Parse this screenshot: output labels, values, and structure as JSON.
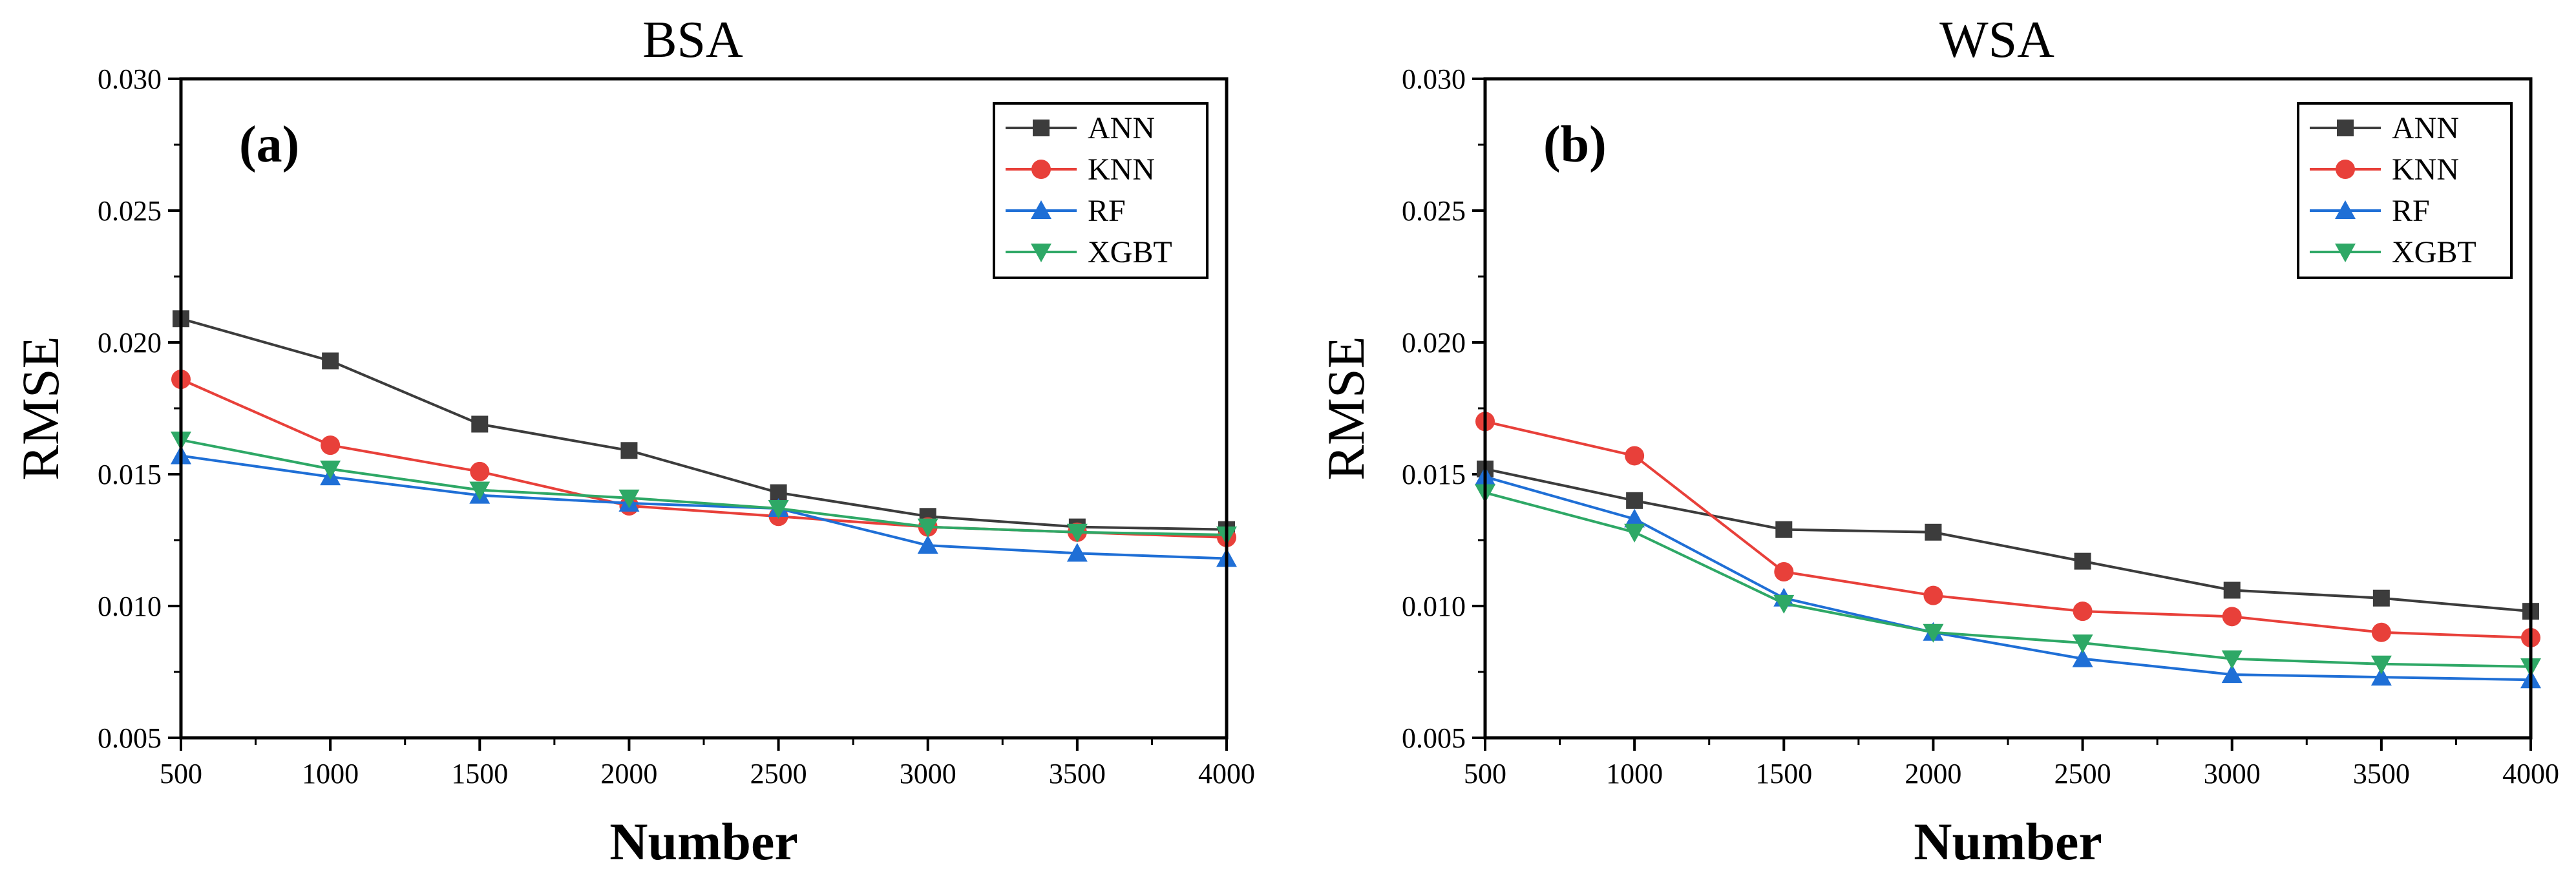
{
  "chart_data": [
    {
      "type": "line",
      "title": "BSA",
      "panel_label": "(a)",
      "xlabel": "Number",
      "ylabel": "RMSE",
      "x": [
        500,
        1000,
        1500,
        2000,
        2500,
        3000,
        3500,
        4000
      ],
      "x_ticks": [
        "500",
        "1000",
        "1500",
        "2000",
        "2500",
        "3000",
        "3500",
        "4000"
      ],
      "xlim": [
        500,
        4000
      ],
      "y_ticks": [
        "0.005",
        "0.010",
        "0.015",
        "0.020",
        "0.025",
        "0.030"
      ],
      "ylim": [
        0.005,
        0.03
      ],
      "legend_position": "top-right",
      "series": [
        {
          "name": "ANN",
          "color": "#3c3c3c",
          "marker": "square",
          "values": [
            0.0209,
            0.0193,
            0.0169,
            0.0159,
            0.0143,
            0.0134,
            0.013,
            0.0129
          ]
        },
        {
          "name": "KNN",
          "color": "#e8403a",
          "marker": "circle",
          "values": [
            0.0186,
            0.0161,
            0.0151,
            0.0138,
            0.0134,
            0.013,
            0.0128,
            0.0126
          ]
        },
        {
          "name": "RF",
          "color": "#1f6fd6",
          "marker": "triangle-up",
          "values": [
            0.0157,
            0.0149,
            0.0142,
            0.0139,
            0.0137,
            0.0123,
            0.012,
            0.0118
          ]
        },
        {
          "name": "XGBT",
          "color": "#2ea866",
          "marker": "triangle-down",
          "values": [
            0.0163,
            0.0152,
            0.0144,
            0.0141,
            0.0137,
            0.013,
            0.0128,
            0.0127
          ]
        }
      ]
    },
    {
      "type": "line",
      "title": "WSA",
      "panel_label": "(b)",
      "xlabel": "Number",
      "ylabel": "RMSE",
      "x": [
        500,
        1000,
        1500,
        2000,
        2500,
        3000,
        3500,
        4000
      ],
      "x_ticks": [
        "500",
        "1000",
        "1500",
        "2000",
        "2500",
        "3000",
        "3500",
        "4000"
      ],
      "xlim": [
        500,
        4000
      ],
      "y_ticks": [
        "0.005",
        "0.010",
        "0.015",
        "0.020",
        "0.025",
        "0.030"
      ],
      "ylim": [
        0.005,
        0.03
      ],
      "legend_position": "top-right",
      "series": [
        {
          "name": "ANN",
          "color": "#3c3c3c",
          "marker": "square",
          "values": [
            0.0152,
            0.014,
            0.0129,
            0.0128,
            0.0117,
            0.0106,
            0.0103,
            0.0098
          ]
        },
        {
          "name": "KNN",
          "color": "#e8403a",
          "marker": "circle",
          "values": [
            0.017,
            0.0157,
            0.0113,
            0.0104,
            0.0098,
            0.0096,
            0.009,
            0.0088
          ]
        },
        {
          "name": "RF",
          "color": "#1f6fd6",
          "marker": "triangle-up",
          "values": [
            0.0149,
            0.0133,
            0.0103,
            0.009,
            0.008,
            0.0074,
            0.0073,
            0.0072
          ]
        },
        {
          "name": "XGBT",
          "color": "#2ea866",
          "marker": "triangle-down",
          "values": [
            0.0143,
            0.0128,
            0.0101,
            0.009,
            0.0086,
            0.008,
            0.0078,
            0.0077
          ]
        }
      ]
    }
  ]
}
